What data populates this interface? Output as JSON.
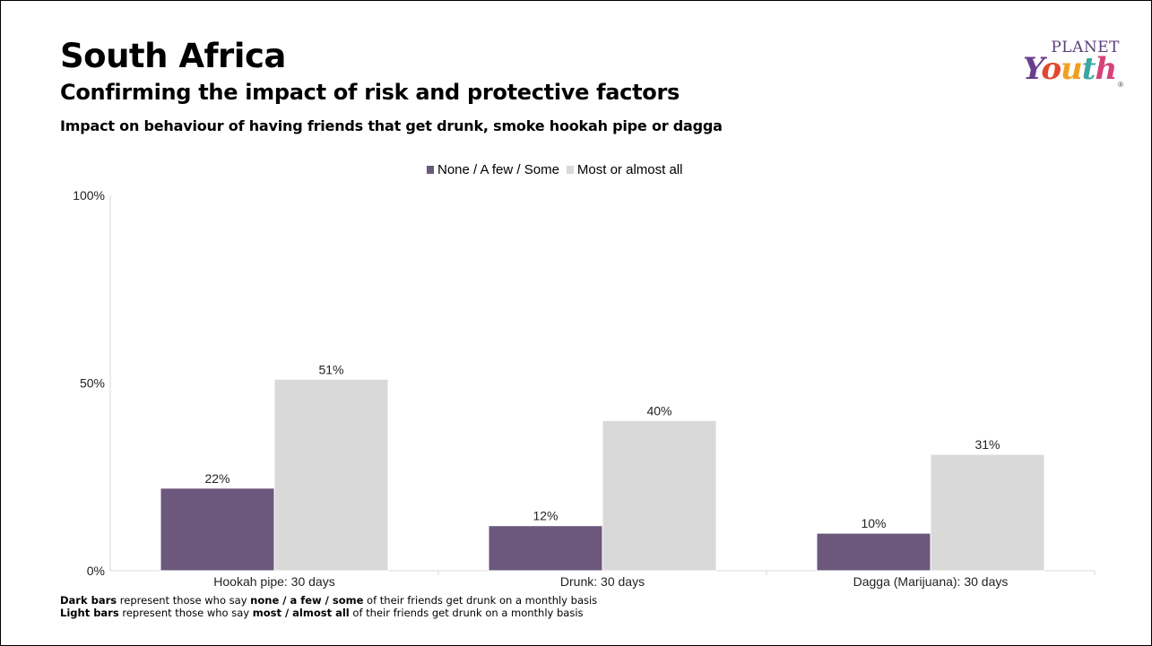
{
  "header": {
    "title": "South Africa",
    "subtitle": "Confirming the impact of risk and protective factors",
    "subsubtitle": "Impact on behaviour of having friends that get drunk, smoke hookah pipe or dagga"
  },
  "logo": {
    "top": "PLANET",
    "bottom": "Youth",
    "reg": "®"
  },
  "chart_data": {
    "type": "bar",
    "categories": [
      "Hookah pipe: 30 days",
      "Drunk: 30 days",
      "Dagga (Marijuana): 30 days"
    ],
    "series": [
      {
        "name": "None / A few / Some",
        "values": [
          22,
          12,
          10
        ],
        "color": "#6b587c"
      },
      {
        "name": "Most or almost all",
        "values": [
          51,
          40,
          31
        ],
        "color": "#d9d9d9"
      }
    ],
    "data_labels": [
      [
        "22%",
        "12%",
        "10%"
      ],
      [
        "51%",
        "40%",
        "31%"
      ]
    ],
    "y_ticks": [
      "0%",
      "50%",
      "100%"
    ],
    "ylim": [
      0,
      100
    ],
    "legend_position": "top-center",
    "grid": false
  },
  "footnotes": [
    {
      "bold": "Dark bars",
      "pre": " represent those who say ",
      "bold2": "none / a few / some",
      "post": " of their friends get drunk on a monthly basis"
    },
    {
      "bold": "Light bars",
      "pre": " represent those who say ",
      "bold2": "most / almost all",
      "post": " of their friends get drunk on a monthly basis"
    }
  ]
}
